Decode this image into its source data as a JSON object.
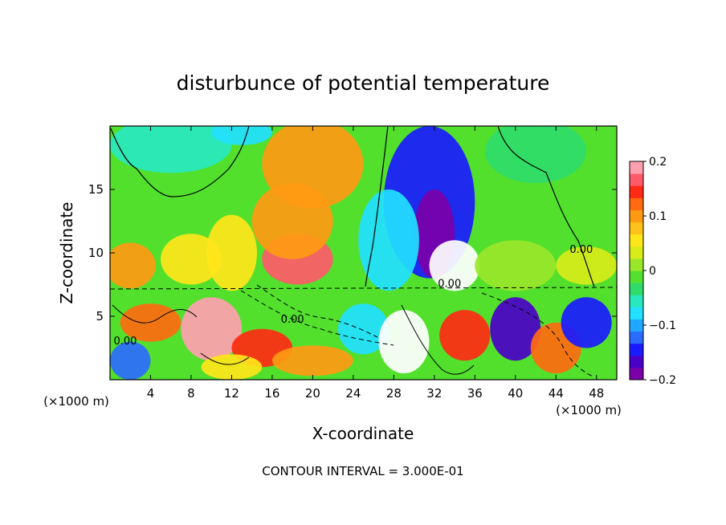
{
  "chart_data": {
    "type": "heatmap",
    "title": "disturbunce of potential temperature",
    "xlabel": "X-coordinate",
    "ylabel": "Z-coordinate",
    "x_unit_label": "(×1000 m)",
    "x_unit_label_right": "(×1000 m)",
    "footer": "CONTOUR INTERVAL = 3.000E-01",
    "xlim": [
      0,
      50
    ],
    "ylim": [
      0,
      20
    ],
    "x_ticks": [
      4,
      8,
      12,
      16,
      20,
      24,
      28,
      32,
      36,
      40,
      44,
      48
    ],
    "y_ticks": [
      5,
      10,
      15
    ],
    "contour_labels": [
      {
        "text": "0.00",
        "x": 46.5,
        "y": 10.0
      },
      {
        "text": "0.00",
        "x": 33.5,
        "y": 7.3
      },
      {
        "text": "0.00",
        "x": 18.0,
        "y": 4.5
      },
      {
        "text": "0.00",
        "x": 1.5,
        "y": 2.8
      }
    ],
    "colorbar": {
      "min": -0.2,
      "max": 0.2,
      "ticks": [
        0.2,
        0.1,
        0,
        -0.1,
        -0.2
      ],
      "tick_labels": [
        "0.2",
        "0.1",
        "0",
        "−0.1",
        "−0.2"
      ],
      "colors": [
        "#7b00a8",
        "#4b00c8",
        "#1a1aff",
        "#2b6bff",
        "#1fa8ff",
        "#22e0ff",
        "#28e8c0",
        "#2fdc6a",
        "#55e030",
        "#9ae62a",
        "#d8ec1a",
        "#ffe61a",
        "#ffc21a",
        "#ff9a14",
        "#ff6a10",
        "#ff2a14",
        "#ff5a6a",
        "#ffa0b0"
      ]
    },
    "field_blobs": [
      {
        "x": 6,
        "y": 18.5,
        "rx": 6,
        "ry": 2.2,
        "v": -0.06
      },
      {
        "x": 13,
        "y": 19.5,
        "rx": 3,
        "ry": 1,
        "v": -0.08
      },
      {
        "x": 20,
        "y": 17,
        "rx": 5,
        "ry": 3.5,
        "v": 0.1
      },
      {
        "x": 18.5,
        "y": 9.5,
        "rx": 3.5,
        "ry": 2,
        "v": 0.16
      },
      {
        "x": 18,
        "y": 12.5,
        "rx": 4,
        "ry": 3,
        "v": 0.09
      },
      {
        "x": 12,
        "y": 10,
        "rx": 2.5,
        "ry": 3,
        "v": 0.06
      },
      {
        "x": 8,
        "y": 9.5,
        "rx": 3,
        "ry": 2,
        "v": 0.05
      },
      {
        "x": 2,
        "y": 9,
        "rx": 2.5,
        "ry": 1.8,
        "v": 0.1
      },
      {
        "x": 31.5,
        "y": 14,
        "rx": 4.5,
        "ry": 6,
        "v": -0.15
      },
      {
        "x": 32,
        "y": 11.5,
        "rx": 2,
        "ry": 3.5,
        "v": -0.2
      },
      {
        "x": 34,
        "y": 9,
        "rx": 2.5,
        "ry": 2,
        "v": -0.24
      },
      {
        "x": 27.5,
        "y": 11,
        "rx": 3,
        "ry": 4,
        "v": -0.07
      },
      {
        "x": 42,
        "y": 18,
        "rx": 5,
        "ry": 2.5,
        "v": -0.04
      },
      {
        "x": 40,
        "y": 9,
        "rx": 4,
        "ry": 2,
        "v": 0.02
      },
      {
        "x": 47,
        "y": 9,
        "rx": 3,
        "ry": 1.5,
        "v": 0.04
      },
      {
        "x": 4,
        "y": 4.5,
        "rx": 3,
        "ry": 1.5,
        "v": 0.12
      },
      {
        "x": 10,
        "y": 4,
        "rx": 3,
        "ry": 2.5,
        "v": 0.18
      },
      {
        "x": 15,
        "y": 2.5,
        "rx": 3,
        "ry": 1.5,
        "v": 0.14
      },
      {
        "x": 20,
        "y": 1.5,
        "rx": 4,
        "ry": 1.2,
        "v": 0.1
      },
      {
        "x": 25,
        "y": 4,
        "rx": 2.5,
        "ry": 2,
        "v": -0.08
      },
      {
        "x": 29,
        "y": 3,
        "rx": 2.5,
        "ry": 2.5,
        "v": 0.22
      },
      {
        "x": 35,
        "y": 3.5,
        "rx": 2.5,
        "ry": 2,
        "v": 0.14
      },
      {
        "x": 40,
        "y": 4,
        "rx": 2.5,
        "ry": 2.5,
        "v": -0.16
      },
      {
        "x": 44,
        "y": 2.5,
        "rx": 2.5,
        "ry": 2,
        "v": 0.12
      },
      {
        "x": 47,
        "y": 4.5,
        "rx": 2.5,
        "ry": 2,
        "v": -0.14
      },
      {
        "x": 2,
        "y": 1.5,
        "rx": 2,
        "ry": 1.5,
        "v": -0.12
      },
      {
        "x": 12,
        "y": 1,
        "rx": 3,
        "ry": 1,
        "v": 0.05
      }
    ]
  }
}
